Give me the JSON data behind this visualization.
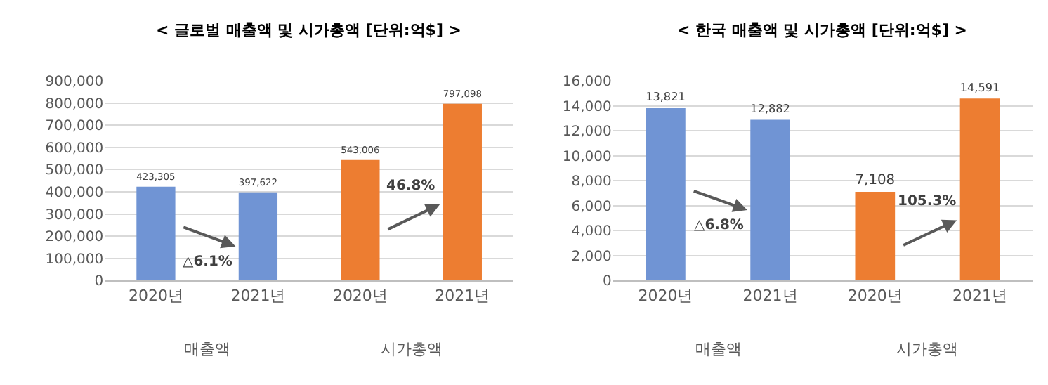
{
  "chart_data": [
    {
      "type": "bar",
      "title": "< 글로벌 매출액 및 시가총액 [단위:억$] >",
      "categories": [
        "2020년",
        "2021년",
        "2020년",
        "2021년"
      ],
      "values": [
        423305,
        397622,
        543006,
        797098
      ],
      "colors": [
        "#7094d4",
        "#7094d4",
        "#ed7d31",
        "#ed7d31"
      ],
      "ylim": [
        0,
        900000
      ],
      "yticks": [
        {
          "value": 0,
          "label": "0"
        },
        {
          "value": 100000,
          "label": "100,000"
        },
        {
          "value": 200000,
          "label": "200,000"
        },
        {
          "value": 300000,
          "label": "300,000"
        },
        {
          "value": 400000,
          "label": "400,000"
        },
        {
          "value": 500000,
          "label": "500,000"
        },
        {
          "value": 600000,
          "label": "600,000"
        },
        {
          "value": 700000,
          "label": "700,000"
        },
        {
          "value": 800000,
          "label": "800,000"
        },
        {
          "value": 900000,
          "label": "900,000"
        }
      ],
      "grid": "y",
      "value_labels": [
        "423,305",
        "397,622",
        "543,006",
        "797,098"
      ],
      "annotations": [
        "매출액",
        "시가총액",
        "△6.1%",
        "46.8%"
      ]
    },
    {
      "type": "bar",
      "title": "< 한국 매출액 및 시가총액 [단위:억$] >",
      "categories": [
        "2020년",
        "2021년",
        "2020년",
        "2021년"
      ],
      "values": [
        13821,
        12882,
        7108,
        14591
      ],
      "colors": [
        "#7094d4",
        "#7094d4",
        "#ed7d31",
        "#ed7d31"
      ],
      "ylim": [
        0,
        16000
      ],
      "yticks": [
        {
          "value": 0,
          "label": "0"
        },
        {
          "value": 2000,
          "label": "2,000"
        },
        {
          "value": 4000,
          "label": "4,000"
        },
        {
          "value": 6000,
          "label": "6,000"
        },
        {
          "value": 8000,
          "label": "8,000"
        },
        {
          "value": 10000,
          "label": "10,000"
        },
        {
          "value": 12000,
          "label": "12,000"
        },
        {
          "value": 14000,
          "label": "14,000"
        },
        {
          "value": 16000,
          "label": "16,000"
        }
      ],
      "grid": "y",
      "value_labels": [
        "13,821",
        "12,882",
        "7,108",
        "14,591"
      ],
      "annotations": [
        "매출액",
        "시가총액",
        "△6.8%",
        "105.3%"
      ]
    }
  ]
}
